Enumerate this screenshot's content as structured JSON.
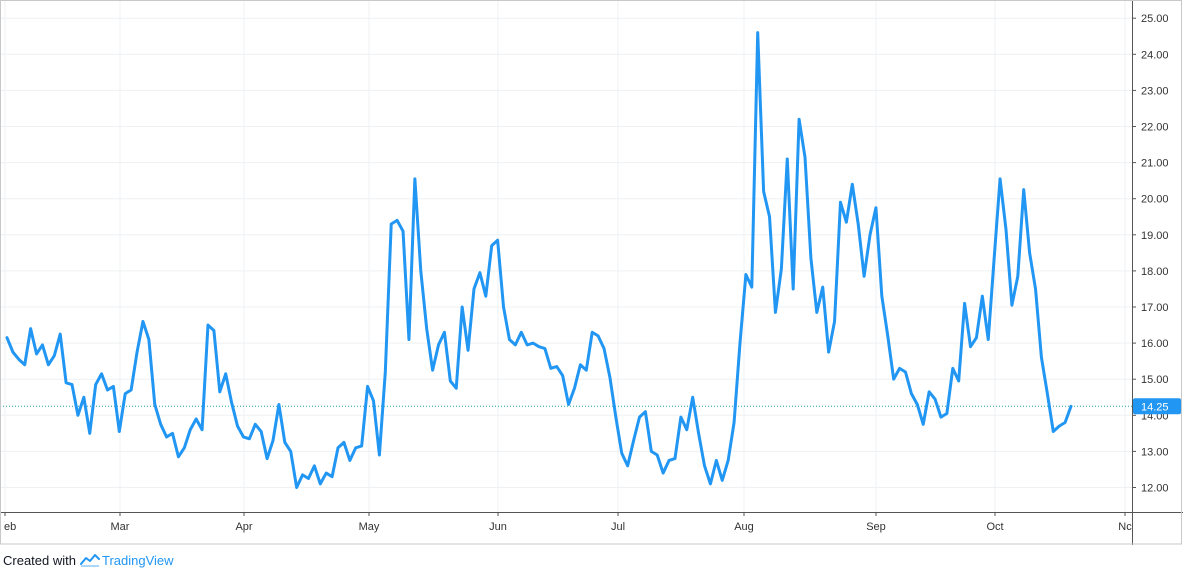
{
  "chart_data": {
    "type": "line",
    "x_tick_labels": [
      "eb",
      "Mar",
      "Apr",
      "May",
      "Jun",
      "Jul",
      "Aug",
      "Sep",
      "Oct",
      "Nc"
    ],
    "y_tick_labels": [
      "12.00",
      "13.00",
      "14.00",
      "15.00",
      "16.00",
      "17.00",
      "18.00",
      "19.00",
      "20.00",
      "21.00",
      "22.00",
      "23.00",
      "24.00",
      "25.00"
    ],
    "ylim": [
      11.25,
      25.25
    ],
    "grid": true,
    "line_color": "#2196f3",
    "last_value": 14.25,
    "last_value_label": "14.25",
    "series": [
      {
        "values": [
          16.15,
          15.75,
          15.55,
          15.4,
          16.4,
          15.7,
          15.95,
          15.4,
          15.65,
          16.25,
          14.9,
          14.85,
          14.0,
          14.5,
          13.5,
          14.85,
          15.15,
          14.7,
          14.8,
          13.55,
          14.6,
          14.7,
          15.75,
          16.6,
          16.1,
          14.3,
          13.75,
          13.4,
          13.5,
          12.85,
          13.1,
          13.6,
          13.9,
          13.6,
          16.5,
          16.35,
          14.65,
          15.15,
          14.35,
          13.7,
          13.4,
          13.35,
          13.75,
          13.55,
          12.8,
          13.3,
          14.3,
          13.25,
          13.0,
          12.0,
          12.35,
          12.25,
          12.6,
          12.1,
          12.4,
          12.3,
          13.1,
          13.25,
          12.75,
          13.1,
          13.15,
          14.8,
          14.4,
          12.9,
          15.2,
          19.3,
          19.4,
          19.1,
          16.1,
          20.55,
          18.0,
          16.4,
          15.25,
          15.95,
          16.3,
          14.95,
          14.75,
          17.0,
          15.8,
          17.5,
          17.95,
          17.3,
          18.7,
          18.85,
          17.0,
          16.1,
          15.95,
          16.3,
          15.95,
          16.0,
          15.9,
          15.85,
          15.3,
          15.35,
          15.1,
          14.3,
          14.75,
          15.4,
          15.25,
          16.3,
          16.2,
          15.85,
          15.05,
          13.95,
          12.95,
          12.6,
          13.3,
          13.95,
          14.1,
          13.0,
          12.9,
          12.4,
          12.75,
          12.8,
          13.95,
          13.6,
          14.5,
          13.5,
          12.6,
          12.1,
          12.75,
          12.2,
          12.75,
          13.8,
          16.0,
          17.9,
          17.55,
          24.6,
          20.2,
          19.5,
          16.85,
          18.05,
          21.1,
          17.5,
          22.2,
          21.15,
          18.35,
          16.85,
          17.55,
          15.75,
          16.6,
          19.9,
          19.35,
          20.4,
          19.3,
          17.85,
          19.0,
          19.75,
          17.3,
          16.2,
          15.0,
          15.3,
          15.2,
          14.6,
          14.3,
          13.75,
          14.65,
          14.45,
          13.95,
          14.05,
          15.3,
          14.95,
          17.1,
          15.9,
          16.15,
          17.3,
          16.1,
          18.35,
          20.55,
          19.15,
          17.05,
          17.85,
          20.25,
          18.5,
          17.5,
          15.6,
          14.6,
          13.55,
          13.7,
          13.8,
          14.25
        ]
      }
    ]
  },
  "footer": {
    "created_with": "Created with",
    "brand": "TradingView"
  }
}
